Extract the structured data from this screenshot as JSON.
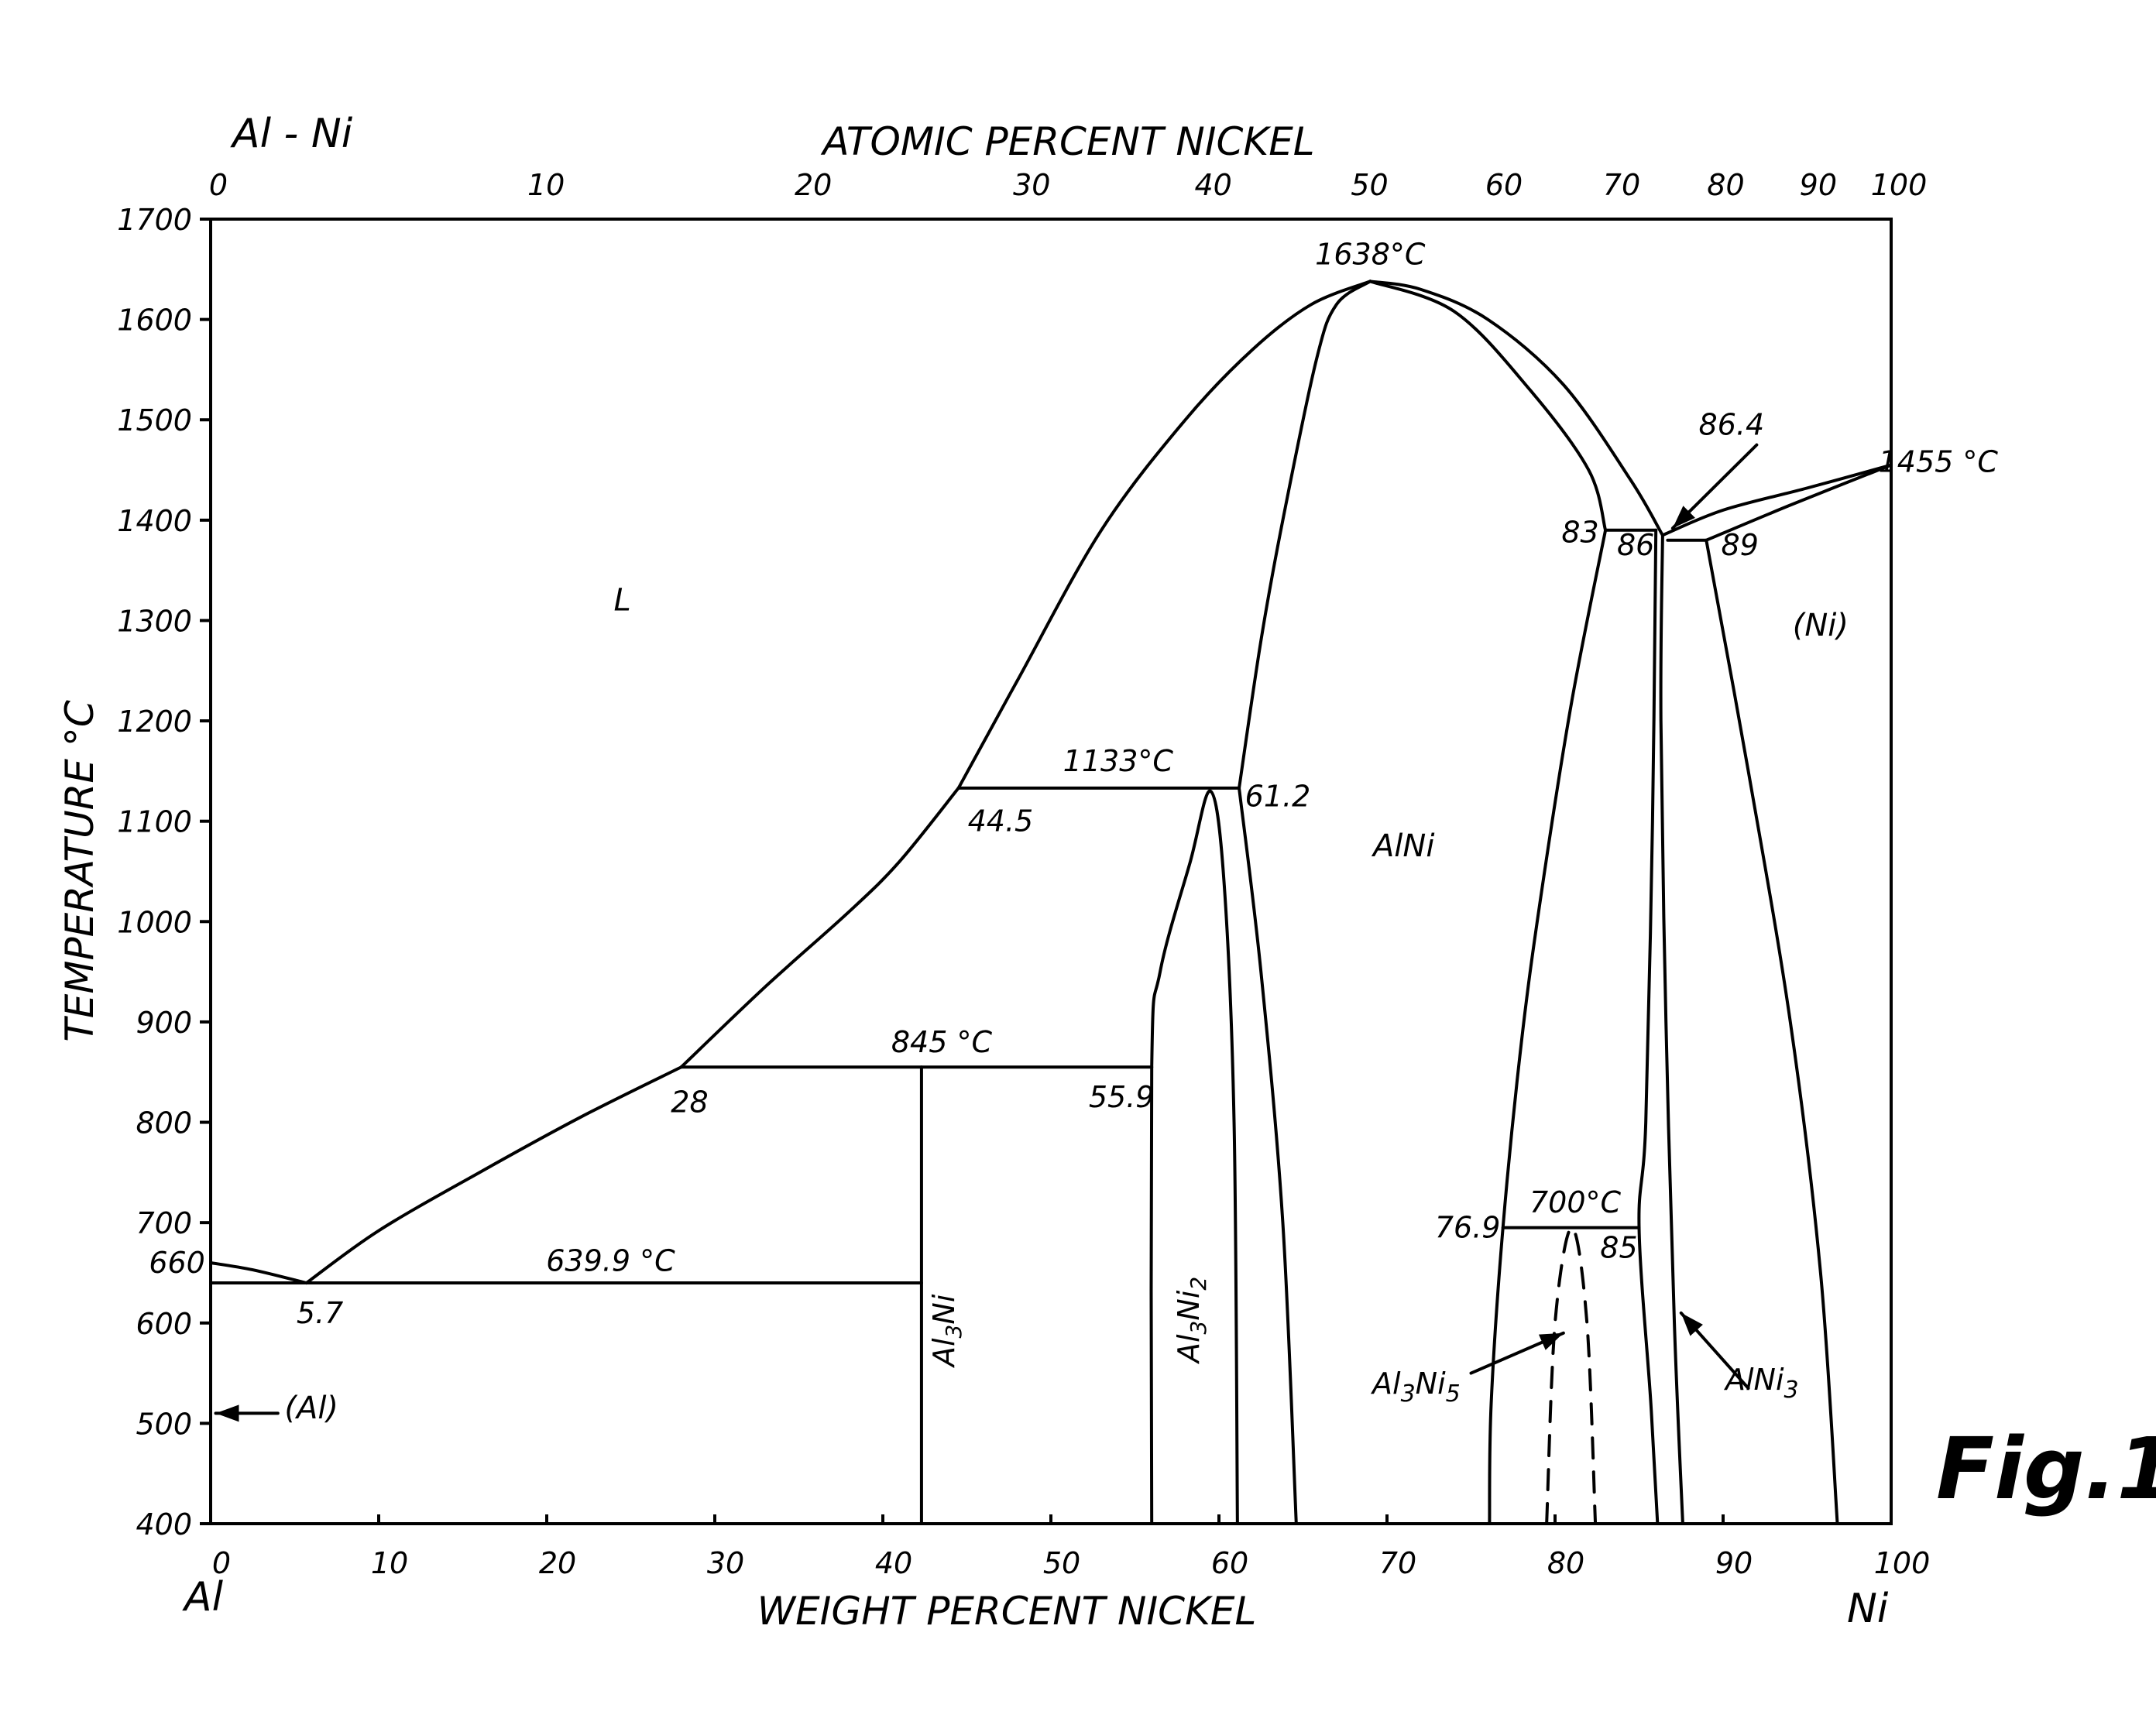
{
  "chart_data": {
    "type": "line",
    "title": "Al - Ni",
    "figure_label": "Fig.1",
    "xlabel": "WEIGHT PERCENT NICKEL",
    "x2label": "ATOMIC PERCENT NICKEL",
    "ylabel": "TEMPERATURE °C",
    "xlim": [
      0,
      100
    ],
    "ylim": [
      400,
      1700
    ],
    "x_ticks": [
      "0",
      "10",
      "20",
      "30",
      "40",
      "50",
      "60",
      "70",
      "80",
      "90",
      "100"
    ],
    "y_ticks": [
      "1700",
      "1600",
      "1500",
      "1400",
      "1300",
      "1200",
      "1100",
      "1000",
      "900",
      "800",
      "700",
      "600",
      "500",
      "400"
    ],
    "atomic_ticks": [
      {
        "wt": 0,
        "label": "0"
      },
      {
        "wt": 19.5,
        "label": "10"
      },
      {
        "wt": 35.4,
        "label": "20"
      },
      {
        "wt": 48.4,
        "label": "30"
      },
      {
        "wt": 59.2,
        "label": "40"
      },
      {
        "wt": 68.5,
        "label": "50"
      },
      {
        "wt": 76.5,
        "label": "60"
      },
      {
        "wt": 83.5,
        "label": "70"
      },
      {
        "wt": 89.7,
        "label": "80"
      },
      {
        "wt": 95.2,
        "label": "90"
      },
      {
        "wt": 100,
        "label": "100"
      }
    ],
    "left_element": "Al",
    "right_element": "Ni",
    "curves": [
      {
        "points": [
          [
            0,
            660
          ],
          [
            2.5,
            653
          ],
          [
            5.7,
            639.9
          ]
        ]
      },
      {
        "points": [
          [
            5.7,
            639.9
          ],
          [
            10,
            692
          ],
          [
            16,
            750
          ],
          [
            22,
            805
          ],
          [
            28,
            855
          ]
        ]
      },
      {
        "points": [
          [
            28,
            855
          ],
          [
            33,
            935
          ],
          [
            38,
            1010
          ],
          [
            41,
            1060
          ],
          [
            44.5,
            1133
          ]
        ]
      },
      {
        "points": [
          [
            44.5,
            1133
          ],
          [
            48,
            1240
          ],
          [
            53,
            1390
          ],
          [
            58,
            1500
          ],
          [
            62,
            1570
          ],
          [
            65.5,
            1615
          ],
          [
            69,
            1638
          ]
        ]
      },
      {
        "points": [
          [
            69,
            1638
          ],
          [
            74,
            1608
          ],
          [
            78.5,
            1530
          ],
          [
            82,
            1450
          ],
          [
            83,
            1390
          ]
        ]
      },
      {
        "points": [
          [
            69,
            1638
          ],
          [
            72,
            1630
          ],
          [
            76,
            1600
          ],
          [
            80.5,
            1535
          ],
          [
            84.5,
            1440
          ],
          [
            86.4,
            1385
          ]
        ]
      },
      {
        "points": [
          [
            86.4,
            1385
          ],
          [
            90,
            1410
          ],
          [
            95,
            1432
          ],
          [
            100,
            1455
          ]
        ]
      },
      {
        "points": [
          [
            89,
            1380
          ],
          [
            94,
            1415
          ],
          [
            100,
            1455
          ]
        ]
      },
      {
        "points": [
          [
            0,
            639.9
          ],
          [
            42.3,
            639.9
          ]
        ]
      },
      {
        "points": [
          [
            28,
            855
          ],
          [
            56,
            855
          ]
        ]
      },
      {
        "points": [
          [
            44.5,
            1133
          ],
          [
            61.2,
            1133
          ]
        ]
      },
      {
        "points": [
          [
            42.3,
            855
          ],
          [
            42.3,
            400
          ]
        ]
      },
      {
        "points": [
          [
            56,
            400
          ],
          [
            56,
            855
          ],
          [
            56.5,
            950
          ],
          [
            58.3,
            1060
          ],
          [
            59.5,
            1130
          ],
          [
            60.3,
            1040
          ],
          [
            60.9,
            800
          ],
          [
            61.1,
            400
          ]
        ]
      },
      {
        "points": [
          [
            61.2,
            1133
          ],
          [
            62.5,
            950
          ],
          [
            63.8,
            700
          ],
          [
            64.6,
            400
          ]
        ]
      },
      {
        "points": [
          [
            69,
            1638
          ],
          [
            67,
            1615
          ],
          [
            65.8,
            1560
          ],
          [
            63.8,
            1400
          ],
          [
            62.5,
            1280
          ],
          [
            61.2,
            1133
          ]
        ]
      },
      {
        "points": [
          [
            83,
            1390
          ],
          [
            81,
            1220
          ],
          [
            79.2,
            1030
          ],
          [
            78,
            880
          ],
          [
            76.9,
            695
          ],
          [
            76.2,
            520
          ],
          [
            76.1,
            400
          ]
        ]
      },
      {
        "points": [
          [
            83,
            1390
          ],
          [
            86,
            1390
          ]
        ]
      },
      {
        "points": [
          [
            86,
            1390
          ],
          [
            85.8,
            1100
          ],
          [
            85.4,
            800
          ],
          [
            85,
            695
          ],
          [
            85.7,
            520
          ],
          [
            86.1,
            400
          ]
        ]
      },
      {
        "points": [
          [
            76.9,
            695
          ],
          [
            85,
            695
          ]
        ]
      },
      {
        "points": [
          [
            86.4,
            1385
          ],
          [
            86.3,
            1200
          ],
          [
            86.6,
            900
          ],
          [
            87.1,
            600
          ],
          [
            87.6,
            400
          ]
        ]
      },
      {
        "points": [
          [
            86.7,
            1380
          ],
          [
            89,
            1380
          ]
        ]
      },
      {
        "points": [
          [
            89,
            1380
          ],
          [
            91.5,
            1150
          ],
          [
            94,
            900
          ],
          [
            95.8,
            650
          ],
          [
            96.8,
            400
          ]
        ]
      }
    ],
    "dashed_curves": [
      {
        "points": [
          [
            79.5,
            400
          ],
          [
            80,
            600
          ],
          [
            81,
            695
          ],
          [
            81.9,
            600
          ],
          [
            82.4,
            400
          ]
        ]
      }
    ],
    "annotations": [
      {
        "text": "1638°C",
        "x": 69,
        "y": 1655
      },
      {
        "text": "86.4",
        "x": 90.5,
        "y": 1485
      },
      {
        "text": "1455 °C",
        "x": 102.8,
        "y": 1448
      },
      {
        "text": "83",
        "x": 81.5,
        "y": 1378
      },
      {
        "text": "86",
        "x": 84.8,
        "y": 1365
      },
      {
        "text": "89",
        "x": 91,
        "y": 1365
      },
      {
        "text": "1133°C",
        "x": 54,
        "y": 1150
      },
      {
        "text": "61.2",
        "x": 63.5,
        "y": 1115
      },
      {
        "text": "44.5",
        "x": 47,
        "y": 1090
      },
      {
        "text": "845 °C",
        "x": 43.5,
        "y": 870
      },
      {
        "text": "28",
        "x": 28.5,
        "y": 810
      },
      {
        "text": "55.9",
        "x": 54.2,
        "y": 815
      },
      {
        "text": "700°C",
        "x": 81.2,
        "y": 710
      },
      {
        "text": "76.9",
        "x": 74.8,
        "y": 685
      },
      {
        "text": "85",
        "x": 83.8,
        "y": 665
      },
      {
        "text": "639.9 °C",
        "x": 23.8,
        "y": 652
      },
      {
        "text": "5.7",
        "x": 6.5,
        "y": 600
      },
      {
        "text": "660",
        "x": -2,
        "y": 650
      }
    ],
    "regions": [
      {
        "text": "L",
        "x": 24.5,
        "y": 1310
      },
      {
        "text": "AlNi",
        "x": 71,
        "y": 1065
      },
      {
        "text": "(Ni)",
        "x": 95.8,
        "y": 1285
      },
      {
        "text": "(Al)",
        "x": 6,
        "y": 505
      }
    ],
    "phase_labels": [
      {
        "name": "Al3Ni",
        "base": "Al",
        "sub1": "3",
        "mid": "Ni",
        "sub2": ""
      },
      {
        "name": "Al3Ni2",
        "base": "Al",
        "sub1": "3",
        "mid": "Ni",
        "sub2": "2"
      },
      {
        "name": "Al3Ni5",
        "base": "Al",
        "sub1": "3",
        "mid": "Ni",
        "sub2": "5"
      },
      {
        "name": "AlNi3",
        "base": "AlNi",
        "sub1": "3",
        "mid": "",
        "sub2": ""
      }
    ],
    "arrows": [
      {
        "from": [
          92,
          1475
        ],
        "to": [
          87,
          1392
        ]
      },
      {
        "from": [
          75,
          550
        ],
        "to": [
          80.5,
          590
        ]
      },
      {
        "from": [
          91.5,
          535
        ],
        "to": [
          87.5,
          610
        ]
      },
      {
        "from": [
          4,
          510
        ],
        "to": [
          0.3,
          510
        ]
      }
    ]
  }
}
